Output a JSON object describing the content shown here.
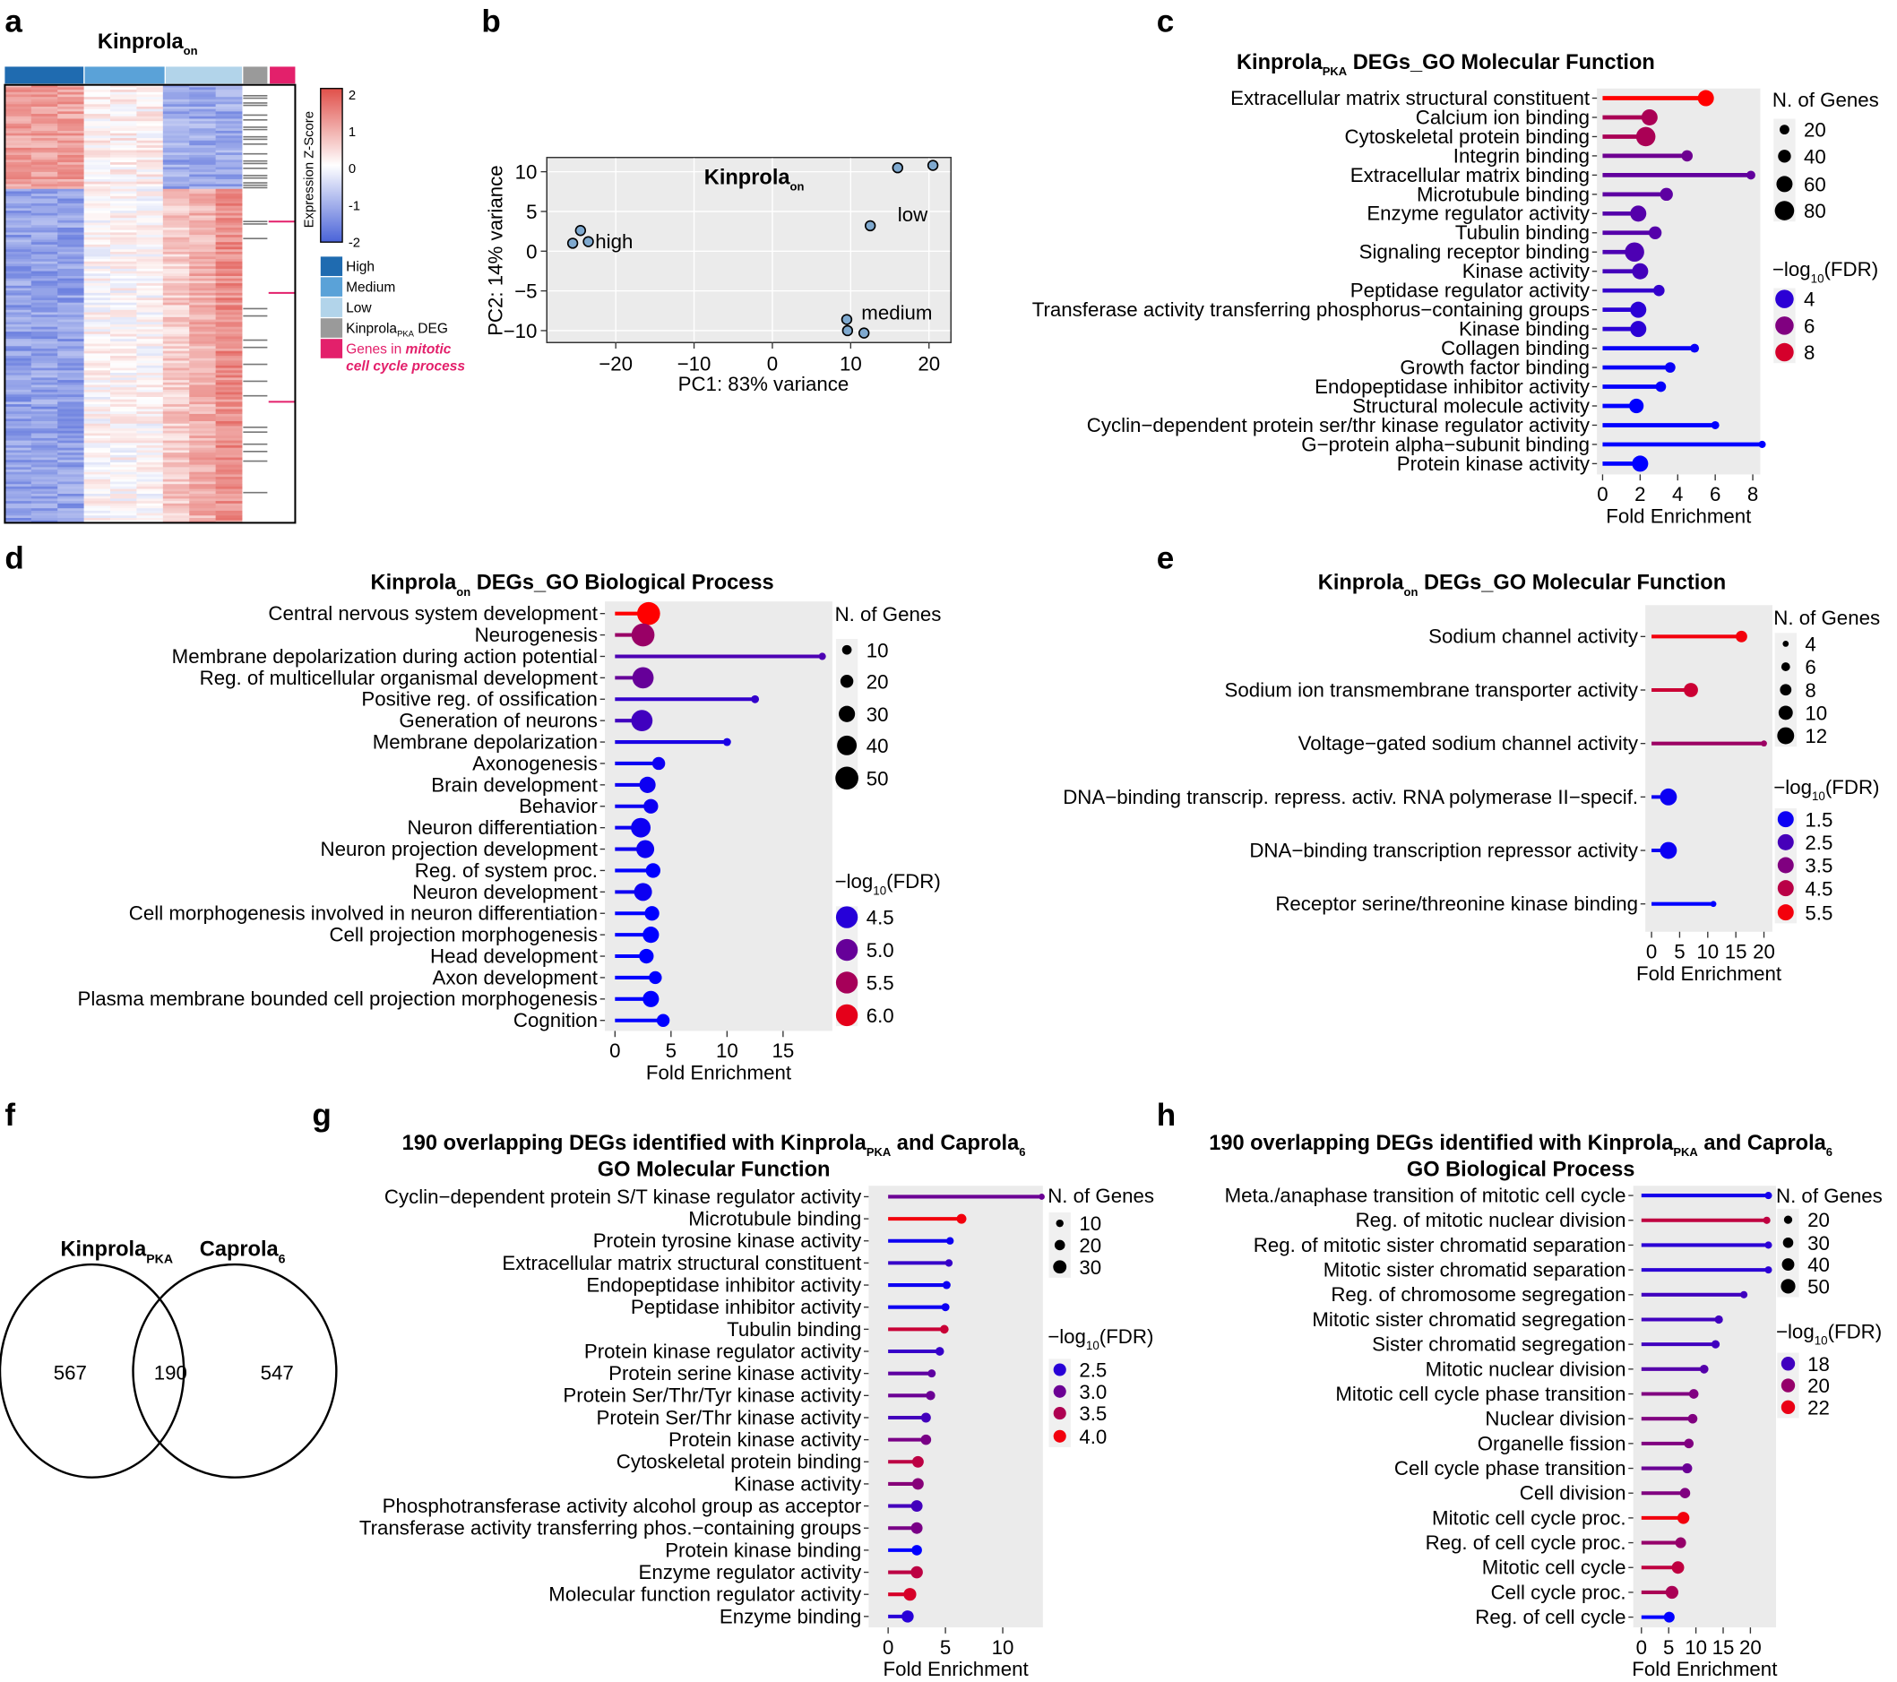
{
  "panel_letters": [
    "a",
    "b",
    "c",
    "d",
    "e",
    "f",
    "g",
    "h"
  ],
  "chart_data": [
    {
      "panel": "a",
      "type": "heatmap",
      "title": [
        {
          "text": "Kinprola"
        },
        {
          "text": "on",
          "sub": true
        }
      ],
      "colorbar": {
        "label": "Expression Z-Score",
        "ticks": [
          "2",
          "1",
          "0",
          "-1",
          "-2"
        ],
        "low": "#4a63d8",
        "mid": "#ffffff",
        "high": "#e0504a",
        "range": [
          -2,
          2
        ]
      },
      "groups": [
        {
          "label": "High",
          "color": "#1f6bb0"
        },
        {
          "label": "Medium",
          "color": "#5aa2d8"
        },
        {
          "label": "Low",
          "color": "#b2d4ea"
        },
        {
          "label": "Kinprola",
          "sub": "PKA",
          "rest": " DEG",
          "color": "#9a9a9a"
        },
        {
          "label": "Genes in ",
          "emph": "mitotic cell cycle process",
          "color": "#e3206b"
        }
      ]
    },
    {
      "panel": "b",
      "type": "scatter",
      "title": [
        {
          "text": "Kinprola"
        },
        {
          "text": "on",
          "sub": true
        }
      ],
      "xlabel": "PC1: 83% variance",
      "ylabel": "PC2: 14% variance",
      "xlim": [
        -28.8,
        22.8
      ],
      "ylim": [
        -11.5,
        11.8
      ],
      "x_ticks": [
        -20,
        -10,
        0,
        10,
        20
      ],
      "y_ticks": [
        10,
        5,
        0,
        -5,
        -10
      ],
      "tick_labels_x": [
        "−20",
        "−10",
        "0",
        "10",
        "20"
      ],
      "tick_labels_y": [
        "10",
        "5",
        "0",
        "−5",
        "−10"
      ],
      "point_color": "#7fa9cf",
      "series": [
        {
          "name": "high",
          "x": [
            -25.5,
            -24.5,
            -23.5
          ],
          "y": [
            1.0,
            2.6,
            1.2
          ]
        },
        {
          "name": "low",
          "x": [
            16.0,
            20.5,
            12.5
          ],
          "y": [
            10.5,
            10.8,
            3.2
          ]
        },
        {
          "name": "medium",
          "x": [
            9.5,
            9.6,
            11.7
          ],
          "y": [
            -8.6,
            -10.0,
            -10.3
          ]
        }
      ]
    },
    {
      "panel": "c",
      "type": "lollipop",
      "title": [
        [
          {
            "text": "Kinprola"
          },
          {
            "text": "PKA",
            "sub": true
          },
          {
            "text": " DEGs_GO Molecular Function"
          }
        ]
      ],
      "xlabel": "Fold Enrichment",
      "x_ticks": [
        0,
        2,
        4,
        6,
        8
      ],
      "xlim": [
        -0.3,
        8.4
      ],
      "terms": [
        "Extracellular matrix structural constituent",
        "Calcium ion binding",
        "Cytoskeletal protein binding",
        "Integrin binding",
        "Extracellular matrix binding",
        "Microtubule binding",
        "Enzyme regulator activity",
        "Tubulin binding",
        "Signaling receptor binding",
        "Kinase activity",
        "Peptidase regulator activity",
        "Transferase activity transferring phosphorus−containing groups",
        "Kinase binding",
        "Collagen binding",
        "Growth factor binding",
        "Endopeptidase inhibitor activity",
        "Structural molecule activity",
        "Cyclin−dependent protein ser/thr kinase regulator activity",
        "G−protein alpha−subunit binding",
        "Protein kinase activity"
      ],
      "fold_enrichment": [
        5.5,
        2.5,
        2.3,
        4.5,
        7.9,
        3.4,
        1.9,
        2.8,
        1.7,
        2.0,
        3.0,
        1.9,
        1.9,
        4.9,
        3.6,
        3.1,
        1.8,
        6.0,
        8.5,
        2.0
      ],
      "n_genes": [
        60,
        60,
        80,
        30,
        15,
        40,
        60,
        40,
        80,
        60,
        30,
        60,
        60,
        15,
        25,
        25,
        50,
        10,
        5,
        60
      ],
      "neg_log10_fdr": [
        9.0,
        7.0,
        7.0,
        5.6,
        5.3,
        5.2,
        5.0,
        5.0,
        4.8,
        4.6,
        4.2,
        4.0,
        4.0,
        3.2,
        3.2,
        3.1,
        3.0,
        3.0,
        3.0,
        3.0
      ],
      "size_legend": {
        "title": "N. of Genes",
        "values": [
          20,
          40,
          60,
          80
        ]
      },
      "color_legend": {
        "title": [
          {
            "text": "−log"
          },
          {
            "text": "10",
            "sub": true
          },
          {
            "text": "(FDR)"
          }
        ],
        "values": [
          4,
          6,
          8
        ],
        "labels": [
          "4",
          "6",
          "8"
        ]
      },
      "color_scale": {
        "low": "#0000ff",
        "high": "#ff0000",
        "limits": [
          3,
          9
        ]
      },
      "size_range_genes": [
        5,
        80
      ]
    },
    {
      "panel": "d",
      "type": "lollipop",
      "title": [
        [
          {
            "text": "Kinprola"
          },
          {
            "text": "on",
            "sub": true
          },
          {
            "text": " DEGs_GO Biological Process"
          }
        ]
      ],
      "xlabel": "Fold Enrichment",
      "x_ticks": [
        0,
        5,
        10,
        15
      ],
      "xlim": [
        -0.9,
        19.4
      ],
      "terms": [
        "Central nervous system development",
        "Neurogenesis",
        "Membrane depolarization during action potential",
        "Reg. of multicellular organismal development",
        "Positive reg. of ossification",
        "Generation of neurons",
        "Membrane depolarization",
        "Axonogenesis",
        "Brain development",
        "Behavior",
        "Neuron differentiation",
        "Neuron projection development",
        "Reg. of system proc.",
        "Neuron development",
        "Cell morphogenesis involved in neuron differentiation",
        "Cell projection morphogenesis",
        "Head development",
        "Axon development",
        "Plasma membrane bounded cell projection morphogenesis",
        "Cognition"
      ],
      "fold_enrichment": [
        3.0,
        2.5,
        18.5,
        2.5,
        12.5,
        2.4,
        10.0,
        3.9,
        2.9,
        3.2,
        2.3,
        2.7,
        3.4,
        2.5,
        3.3,
        3.2,
        2.8,
        3.6,
        3.2,
        4.3
      ],
      "n_genes": [
        50,
        50,
        3,
        45,
        5,
        45,
        5,
        20,
        30,
        25,
        40,
        35,
        25,
        35,
        25,
        30,
        25,
        20,
        30,
        20
      ],
      "neg_log10_fdr": [
        6.2,
        5.4,
        4.8,
        5.0,
        4.6,
        4.7,
        4.4,
        4.3,
        4.3,
        4.3,
        4.3,
        4.3,
        4.2,
        4.3,
        4.2,
        4.2,
        4.2,
        4.2,
        4.2,
        4.2
      ],
      "size_legend": {
        "title": "N. of Genes",
        "values": [
          10,
          20,
          30,
          40,
          50
        ]
      },
      "color_legend": {
        "title": [
          {
            "text": "−log"
          },
          {
            "text": "10",
            "sub": true
          },
          {
            "text": "(FDR)"
          }
        ],
        "values": [
          4.5,
          5.0,
          5.5,
          6.0
        ],
        "labels": [
          "4.5",
          "5.0",
          "5.5",
          "6.0"
        ]
      },
      "color_scale": {
        "low": "#0000ff",
        "high": "#ff0000",
        "limits": [
          4.2,
          6.2
        ]
      },
      "size_range_genes": [
        3,
        50
      ]
    },
    {
      "panel": "e",
      "type": "lollipop",
      "title": [
        [
          {
            "text": "Kinprola"
          },
          {
            "text": "on",
            "sub": true
          },
          {
            "text": " DEGs_GO Molecular Function"
          }
        ]
      ],
      "xlabel": "Fold Enrichment",
      "x_ticks": [
        0,
        5,
        10,
        15,
        20
      ],
      "xlim": [
        -1.1,
        21.5
      ],
      "terms": [
        "Sodium channel activity",
        "Sodium ion transmembrane transporter activity",
        "Voltage−gated sodium channel activity",
        "DNA−binding transcrip. repress. activ. RNA polymerase II−specif.",
        "DNA−binding transcription repressor activity",
        "Receptor serine/threonine kinase binding"
      ],
      "fold_enrichment": [
        16,
        7,
        20,
        3,
        3,
        11
      ],
      "n_genes": [
        8,
        10,
        4,
        12,
        12,
        4
      ],
      "neg_log10_fdr": [
        5.5,
        4.8,
        4.0,
        1.5,
        1.5,
        1.3
      ],
      "size_legend": {
        "title": "N. of Genes",
        "values": [
          4,
          6,
          8,
          10,
          12
        ]
      },
      "color_legend": {
        "title": [
          {
            "text": "−log"
          },
          {
            "text": "10",
            "sub": true
          },
          {
            "text": "(FDR)"
          }
        ],
        "values": [
          1.5,
          2.5,
          3.5,
          4.5,
          5.5
        ],
        "labels": [
          "1.5",
          "2.5",
          "3.5",
          "4.5",
          "5.5"
        ]
      },
      "color_scale": {
        "low": "#0000ff",
        "high": "#ff0000",
        "limits": [
          1.3,
          5.7
        ]
      },
      "size_range_genes": [
        4,
        12
      ]
    },
    {
      "panel": "f",
      "type": "venn",
      "sets": [
        {
          "label": [
            {
              "text": "Kinprola"
            },
            {
              "text": "PKA",
              "sub": true
            }
          ],
          "only": "567"
        },
        {
          "label": [
            {
              "text": "Caprola"
            },
            {
              "text": "6",
              "sub": true
            }
          ],
          "only": "547"
        }
      ],
      "overlap": "190"
    },
    {
      "panel": "g",
      "type": "lollipop",
      "title": [
        [
          {
            "text": "190 overlapping DEGs identified with Kinprola"
          },
          {
            "text": "PKA",
            "sub": true
          },
          {
            "text": " and Caprola"
          },
          {
            "text": "6",
            "sub": true
          }
        ],
        [
          {
            "text": "GO Molecular Function"
          }
        ]
      ],
      "xlabel": "Fold Enrichment",
      "x_ticks": [
        0,
        5,
        10
      ],
      "xlim": [
        -1.7,
        13.5
      ],
      "terms": [
        "Cyclin−dependent protein S/T kinase regulator activity",
        "Microtubule binding",
        "Protein tyrosine kinase activity",
        "Extracellular matrix structural constituent",
        "Endopeptidase inhibitor activity",
        "Peptidase inhibitor activity",
        "Tubulin binding",
        "Protein kinase regulator activity",
        "Protein serine kinase activity",
        "Protein Ser/Thr/Tyr kinase activity",
        "Protein Ser/Thr kinase activity",
        "Protein kinase activity",
        "Cytoskeletal protein binding",
        "Kinase activity",
        "Phosphotransferase activity alcohol group as acceptor",
        "Transferase activity transferring phos.−containing groups",
        "Protein kinase binding",
        "Enzyme regulator activity",
        "Molecular function regulator activity",
        "Enzyme binding"
      ],
      "fold_enrichment": [
        13.4,
        6.4,
        5.4,
        5.3,
        5.1,
        5.0,
        4.9,
        4.5,
        3.8,
        3.7,
        3.3,
        3.3,
        2.6,
        2.6,
        2.5,
        2.5,
        2.5,
        2.5,
        1.9,
        1.7
      ],
      "n_genes": [
        5,
        18,
        10,
        10,
        12,
        12,
        14,
        14,
        12,
        16,
        18,
        20,
        24,
        24,
        24,
        24,
        20,
        26,
        28,
        26
      ],
      "neg_log10_fdr": [
        3.0,
        4.0,
        2.3,
        2.6,
        2.3,
        2.3,
        3.7,
        2.6,
        2.9,
        3.0,
        2.7,
        3.1,
        3.6,
        3.2,
        2.7,
        3.1,
        2.2,
        3.6,
        3.8,
        2.5
      ],
      "size_legend": {
        "title": "N. of Genes",
        "values": [
          10,
          20,
          30
        ]
      },
      "color_legend": {
        "title": [
          {
            "text": "−log"
          },
          {
            "text": "10",
            "sub": true
          },
          {
            "text": "(FDR)"
          }
        ],
        "values": [
          2.5,
          3.0,
          3.5,
          4.0
        ],
        "labels": [
          "2.5",
          "3.0",
          "3.5",
          "4.0"
        ]
      },
      "color_scale": {
        "low": "#0000ff",
        "high": "#ff0000",
        "limits": [
          2.2,
          4.1
        ]
      },
      "size_range_genes": [
        5,
        30
      ]
    },
    {
      "panel": "h",
      "type": "lollipop",
      "title": [
        [
          {
            "text": "190 overlapping DEGs identified with Kinprola"
          },
          {
            "text": "PKA",
            "sub": true
          },
          {
            "text": " and Caprola"
          },
          {
            "text": "6",
            "sub": true
          }
        ],
        [
          {
            "text": "GO Biological Process"
          }
        ]
      ],
      "xlabel": "Fold Enrichment",
      "x_ticks": [
        0,
        5,
        10,
        15,
        20
      ],
      "xlim": [
        -1.5,
        24.7
      ],
      "terms": [
        "Meta./anaphase transition of mitotic cell cycle",
        "Reg. of mitotic nuclear division",
        "Reg. of mitotic sister chromatid separation",
        "Mitotic sister chromatid separation",
        "Reg. of chromosome segregation",
        "Mitotic sister chromatid segregation",
        "Sister chromatid segregation",
        "Mitotic nuclear division",
        "Mitotic cell cycle phase transition",
        "Nuclear division",
        "Organelle fission",
        "Cell cycle phase transition",
        "Cell division",
        "Mitotic cell cycle proc.",
        "Reg. of cell cycle proc.",
        "Mitotic cell cycle",
        "Cell cycle proc.",
        "Reg. of cell cycle"
      ],
      "fold_enrichment": [
        23.3,
        23.0,
        23.3,
        23.3,
        18.8,
        14.2,
        13.6,
        11.5,
        9.6,
        9.4,
        8.7,
        8.4,
        8.0,
        7.7,
        7.2,
        6.7,
        5.6,
        5.1
      ],
      "n_genes": [
        15,
        15,
        15,
        15,
        15,
        20,
        20,
        22,
        26,
        26,
        26,
        28,
        30,
        38,
        32,
        40,
        42,
        32
      ],
      "neg_log10_fdr": [
        17.0,
        21.0,
        17.5,
        17.5,
        18.0,
        18.0,
        18.0,
        18.5,
        19.5,
        19.5,
        19.5,
        19.0,
        19.5,
        22.2,
        20.0,
        21.0,
        20.5,
        16.5
      ],
      "size_legend": {
        "title": "N. of Genes",
        "values": [
          20,
          30,
          40,
          50
        ]
      },
      "color_legend": {
        "title": [
          {
            "text": "−log"
          },
          {
            "text": "10",
            "sub": true
          },
          {
            "text": "(FDR)"
          }
        ],
        "values": [
          18,
          20,
          22
        ],
        "labels": [
          "18",
          "20",
          "22"
        ]
      },
      "color_scale": {
        "low": "#0000ff",
        "high": "#ff0000",
        "limits": [
          16.5,
          22.5
        ]
      },
      "size_range_genes": [
        15,
        50
      ]
    }
  ]
}
